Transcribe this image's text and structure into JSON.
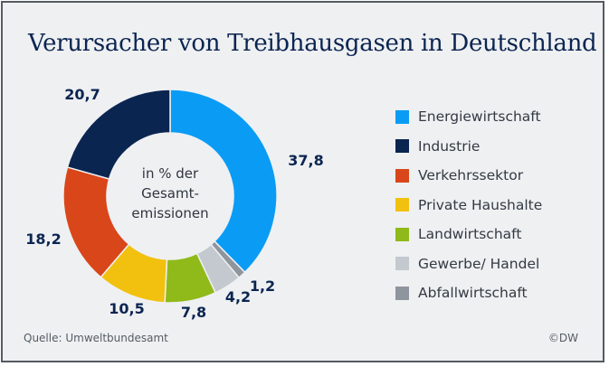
{
  "chart_data": {
    "type": "pie",
    "variant": "donut",
    "title": "Verursacher von Treibhausgasen in Deutschland",
    "center_label": [
      "in % der",
      "Gesamt-",
      "emissionen"
    ],
    "unit": "%",
    "categories": [
      "Energiewirtschaft",
      "Industrie",
      "Verkehrssektor",
      "Private Haushalte",
      "Landwirtschaft",
      "Gewerbe/ Handel",
      "Abfallwirtschaft"
    ],
    "values": [
      37.8,
      20.7,
      18.2,
      10.5,
      7.8,
      4.2,
      1.2
    ],
    "value_labels": [
      "37,8",
      "20,7",
      "18,2",
      "10,5",
      "7,8",
      "4,2",
      "1,2"
    ],
    "colors": [
      "#0a9cf5",
      "#0b2551",
      "#d9461a",
      "#f2c10f",
      "#8fba1a",
      "#c4c9cf",
      "#8e959d"
    ],
    "direction": "clockwise from top, Energiewirtschaft first; remaining slices counter-clockwise from top",
    "legend_position": "right"
  },
  "footer": {
    "source": "Quelle: Umweltbundesamt",
    "copyright": "©DW"
  }
}
